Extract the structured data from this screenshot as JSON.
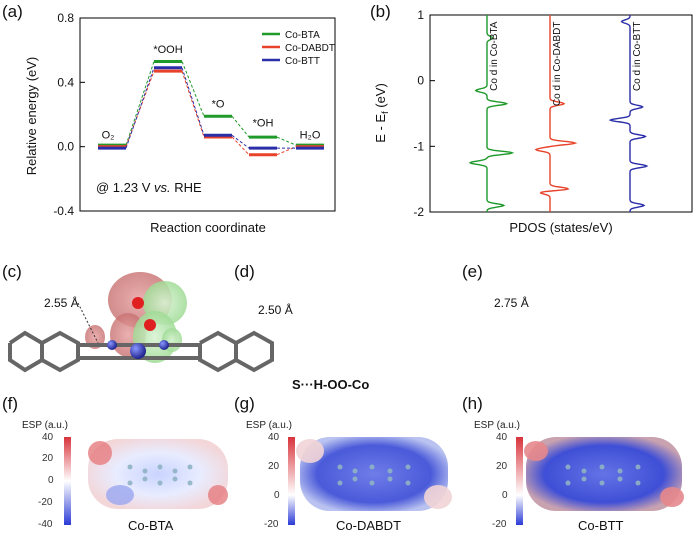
{
  "panels": {
    "a": "(a)",
    "b": "(b)",
    "c": "(c)",
    "d": "(d)",
    "e": "(e)",
    "f": "(f)",
    "g": "(g)",
    "h": "(h)"
  },
  "colors": {
    "bta": "#1f9a2b",
    "dabdt": "#e8432a",
    "btt": "#2a2ea8",
    "esp_pos": "#d8333b",
    "esp_neg": "#2b3bd6"
  },
  "chart_data": [
    {
      "type": "line",
      "id": "free-energy",
      "xlabel": "Reaction coordinate",
      "ylabel": "Relative energy (eV)",
      "ylim": [
        -0.4,
        0.8
      ],
      "yticks": [
        "0.8",
        "0.4",
        "0.0",
        "-0.4"
      ],
      "annotation_prefix": "@ 1.23 V ",
      "annotation_vs": "vs.",
      "annotation_suffix": " RHE",
      "steps": [
        "O₂",
        "*OOH",
        "*O",
        "*OH",
        "H₂O"
      ],
      "legend_placement": "top-right",
      "series": [
        {
          "name": "Co-BTA",
          "values": [
            0.0,
            0.52,
            0.18,
            0.05,
            0.0
          ]
        },
        {
          "name": "Co-DABDT",
          "values": [
            0.0,
            0.47,
            0.06,
            -0.05,
            0.0
          ]
        },
        {
          "name": "Co-BTT",
          "values": [
            0.0,
            0.5,
            0.08,
            0.0,
            0.0
          ]
        }
      ]
    },
    {
      "type": "line",
      "id": "pdos",
      "xlabel": "PDOS (states/eV)",
      "ylabel": "E - E",
      "ylabel_sub": "f",
      "ylabel_unit": " (eV)",
      "ylim": [
        -2,
        1
      ],
      "yticks": [
        "1",
        "0",
        "-1",
        "-2"
      ],
      "series": [
        {
          "name": "Co d in Co-BTA",
          "peaks": [
            [
              -0.35,
              0.7
            ],
            [
              -0.15,
              -0.4
            ],
            [
              -1.1,
              0.9
            ],
            [
              -1.25,
              -0.6
            ],
            [
              -1.9,
              0.6
            ],
            [
              0.65,
              0.2
            ]
          ]
        },
        {
          "name": "Co d in Co-DABDT",
          "peaks": [
            [
              -0.35,
              0.5
            ],
            [
              -0.95,
              0.9
            ],
            [
              -1.05,
              -0.5
            ],
            [
              -1.65,
              0.7
            ],
            [
              -1.7,
              -0.4
            ]
          ]
        },
        {
          "name": "Co d in Co-BTT",
          "peaks": [
            [
              -0.4,
              0.45
            ],
            [
              -0.6,
              -0.7
            ],
            [
              -0.85,
              0.55
            ],
            [
              -1.3,
              0.6
            ],
            [
              -1.9,
              0.5
            ],
            [
              0.9,
              -0.3
            ]
          ]
        }
      ]
    }
  ],
  "molecules": {
    "c": {
      "distance": "2.55 Å"
    },
    "d": {
      "distance": "2.50 Å",
      "annotation": "S···H-OO-Co"
    },
    "e": {
      "distance": "2.75 Å"
    }
  },
  "esp": [
    {
      "title": "ESP (a.u.)",
      "ticks": [
        "40",
        "20",
        "0",
        "-20",
        "-40"
      ],
      "name": "Co-BTA"
    },
    {
      "title": "ESP (a.u.)",
      "ticks": [
        "40",
        "20",
        "0",
        "-20"
      ],
      "name": "Co-DABDT"
    },
    {
      "title": "ESP (a.u.)",
      "ticks": [
        "40",
        "20",
        "0",
        "-20"
      ],
      "name": "Co-BTT"
    }
  ]
}
